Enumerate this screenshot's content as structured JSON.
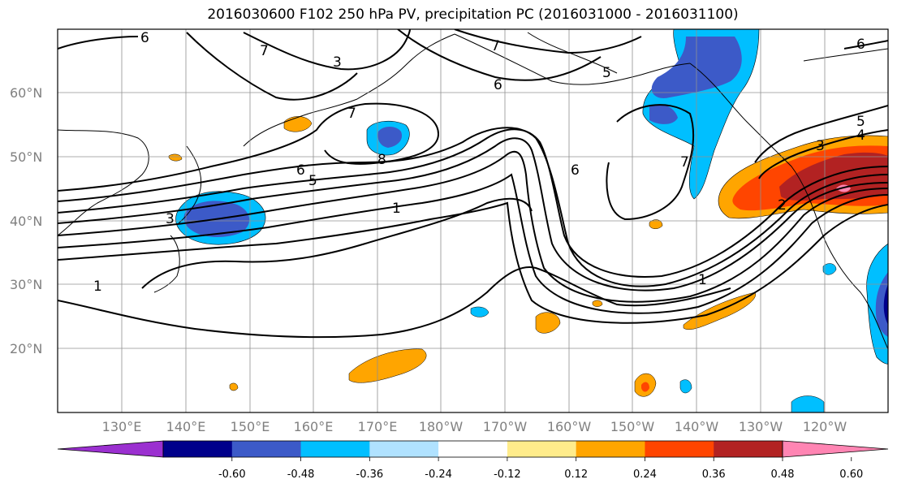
{
  "title": "2016030600 F102 250 hPa PV, precipitation PC (2016031000 - 2016031100)",
  "latitude_labels": [
    "60°N",
    "50°N",
    "40°N",
    "30°N",
    "20°N"
  ],
  "longitude_labels": [
    "130°E",
    "140°E",
    "150°E",
    "160°E",
    "170°E",
    "180°W",
    "170°W",
    "160°W",
    "150°W",
    "140°W",
    "130°W",
    "120°W"
  ],
  "pv_contour_labels": [
    "6",
    "7",
    "3",
    "7",
    "6",
    "5",
    "6",
    "7",
    "8",
    "1",
    "6",
    "5",
    "6",
    "7",
    "5",
    "4",
    "3",
    "2",
    "1",
    "1",
    "3"
  ],
  "colorbar": {
    "tick_labels": [
      "-0.60",
      "-0.48",
      "-0.36",
      "-0.24",
      "-0.12",
      "0.12",
      "0.24",
      "0.36",
      "0.48",
      "0.60"
    ],
    "colors": [
      "#9b30d0",
      "#00008b",
      "#3c5ac8",
      "#00bfff",
      "#b0e2ff",
      "#ffffff",
      "#ffec8b",
      "#ffa500",
      "#ff4500",
      "#b22222",
      "#ff85b3"
    ]
  },
  "colors": {
    "frame": "#000000",
    "grid": "#909090",
    "contour": "#000000",
    "axis_labels": "#808080"
  }
}
